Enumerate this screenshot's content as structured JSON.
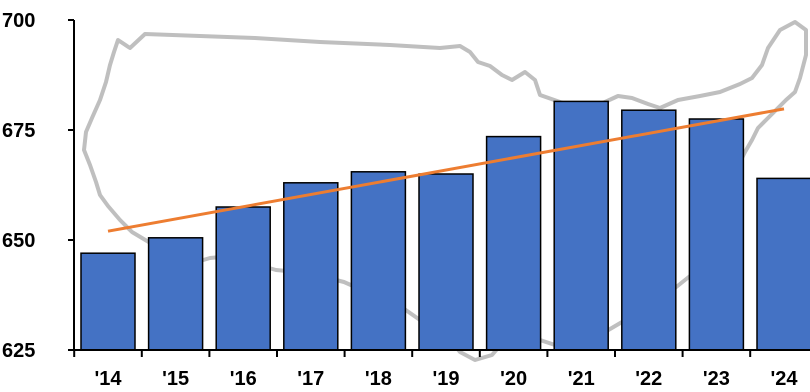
{
  "chart_data": {
    "type": "bar",
    "categories": [
      "'14",
      "'15",
      "'16",
      "'17",
      "'18",
      "'19",
      "'20",
      "'21",
      "'22",
      "'23",
      "'24"
    ],
    "values": [
      647.0,
      650.5,
      657.5,
      663.0,
      665.5,
      665.0,
      673.5,
      681.5,
      679.5,
      677.5,
      664.0
    ],
    "trendline": {
      "start": 652.0,
      "end": 679.8
    },
    "ylim": [
      625,
      700
    ],
    "yticks": [
      625,
      650,
      675,
      700
    ],
    "title": "",
    "xlabel": "",
    "ylabel": "",
    "grid": false,
    "colors": {
      "bar": "#4472C4",
      "bar_edge": "#000000",
      "trend": "#ED7D31",
      "map": "#BFBFBF",
      "axis": "#000000"
    },
    "background_icon": "us-map-outline"
  }
}
